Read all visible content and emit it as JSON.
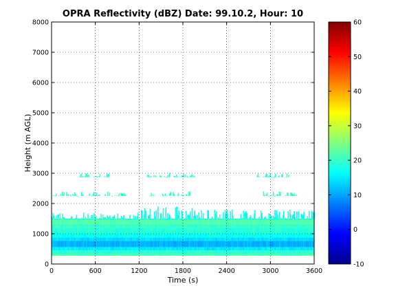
{
  "chart_data": {
    "type": "heatmap",
    "title": "OPRA Reflectivity (dBZ)  Date: 99.10.2, Hour: 10",
    "xlabel": "Time (s)",
    "ylabel": "Height (m AGL)",
    "xlim": [
      0,
      3600
    ],
    "ylim": [
      0,
      8000
    ],
    "xticks": [
      "0",
      "600",
      "1200",
      "1800",
      "2400",
      "3000",
      "3600"
    ],
    "yticks": [
      "0",
      "1000",
      "2000",
      "3000",
      "4000",
      "5000",
      "6000",
      "7000",
      "8000"
    ],
    "grid": true,
    "colorbar": {
      "label": "",
      "clim": [
        -10,
        60
      ],
      "ticks": [
        "-10",
        "0",
        "10",
        "20",
        "30",
        "40",
        "50",
        "60"
      ],
      "colormap": "jet"
    },
    "layers": [
      {
        "height_range": [
          270,
          330
        ],
        "dbz": 22
      },
      {
        "height_range": [
          330,
          450
        ],
        "dbz": 19
      },
      {
        "height_range": [
          450,
          560
        ],
        "dbz": 15
      },
      {
        "height_range": [
          560,
          760
        ],
        "dbz": 11
      },
      {
        "height_range": [
          760,
          880
        ],
        "dbz": 14
      },
      {
        "height_range": [
          880,
          1000
        ],
        "dbz": 17
      },
      {
        "height_range": [
          1000,
          1200
        ],
        "dbz": 19
      },
      {
        "height_range": [
          1200,
          1320
        ],
        "dbz": 20
      },
      {
        "height_range": [
          1320,
          1440
        ],
        "dbz": 22
      },
      {
        "height_range": [
          1440,
          1500
        ],
        "dbz": 20
      }
    ],
    "sparse_echoes": [
      {
        "time_range": [
          0,
          1200
        ],
        "height_range": [
          1500,
          1700
        ],
        "dbz": 18
      },
      {
        "time_range": [
          1200,
          2000
        ],
        "height_range": [
          1500,
          1900
        ],
        "dbz": 17
      },
      {
        "time_range": [
          2000,
          3600
        ],
        "height_range": [
          1500,
          1800
        ],
        "dbz": 17
      },
      {
        "time_range": [
          20,
          1020
        ],
        "height_range": [
          2250,
          2400
        ],
        "dbz": 20
      },
      {
        "time_range": [
          1300,
          1900
        ],
        "height_range": [
          2250,
          2400
        ],
        "dbz": 20
      },
      {
        "time_range": [
          2900,
          3350
        ],
        "height_range": [
          2250,
          2400
        ],
        "dbz": 20
      },
      {
        "time_range": [
          380,
          800
        ],
        "height_range": [
          2870,
          3000
        ],
        "dbz": 20
      },
      {
        "time_range": [
          1300,
          1950
        ],
        "height_range": [
          2870,
          3000
        ],
        "dbz": 20
      },
      {
        "time_range": [
          2800,
          3350
        ],
        "height_range": [
          2870,
          3000
        ],
        "dbz": 20
      }
    ]
  }
}
